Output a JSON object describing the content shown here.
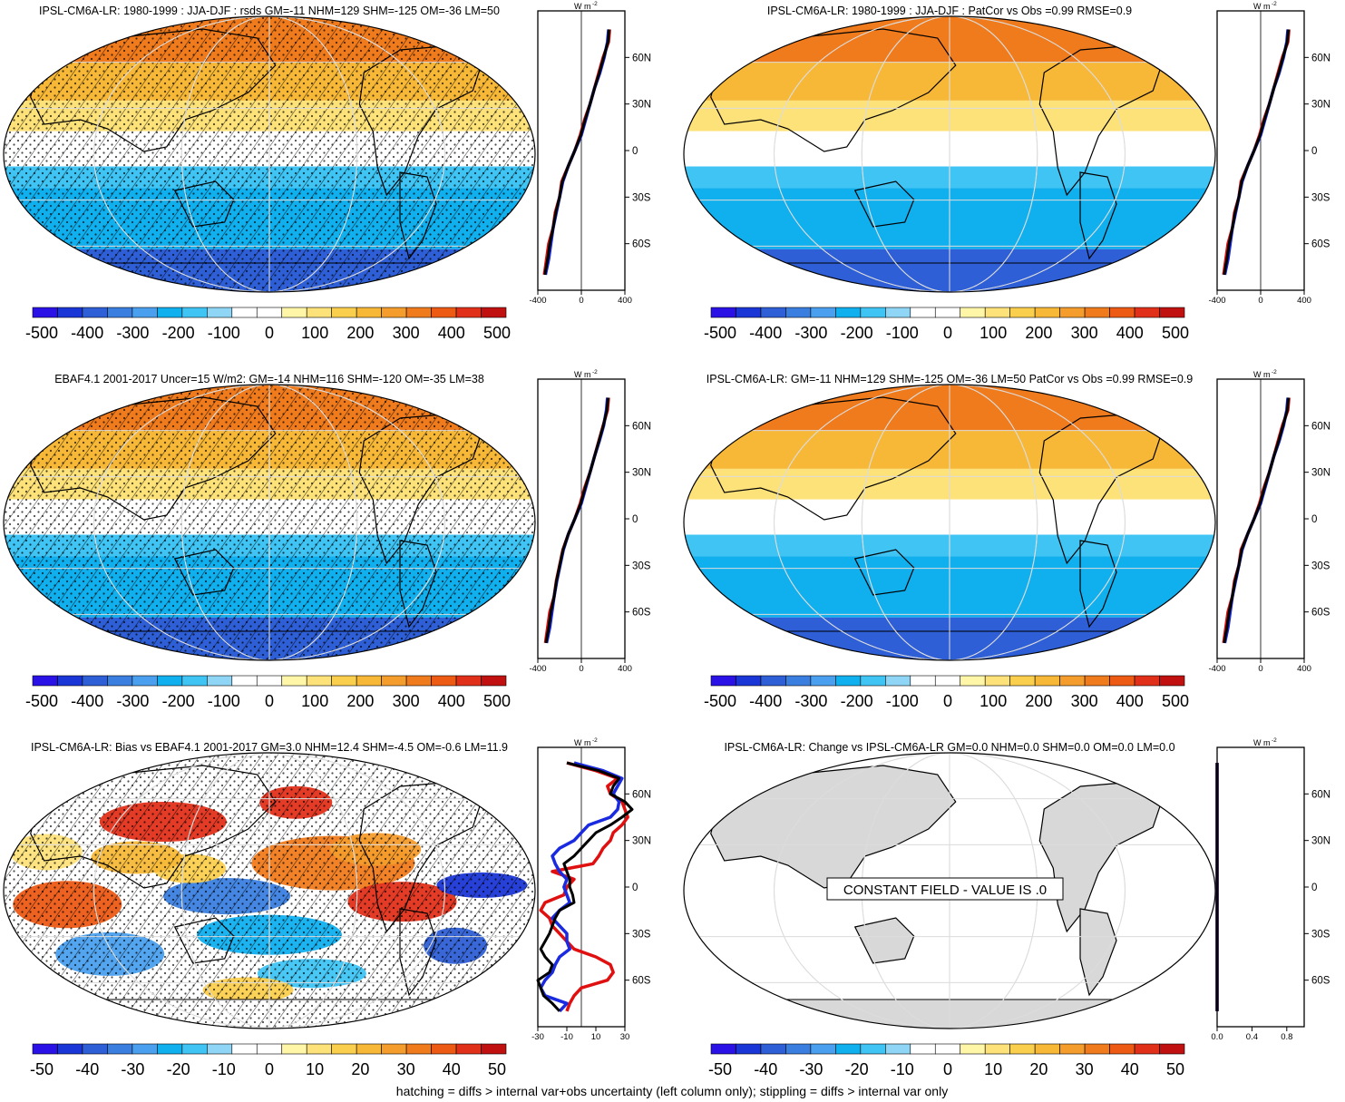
{
  "figure": {
    "footer": "hatching = diffs > internal var+obs uncertainty (left column only); stippling = diffs > internal var only",
    "units_label": "W m",
    "units_exp": "-2",
    "colors": {
      "scale": [
        "#2a12e6",
        "#1a36d6",
        "#2e5fd6",
        "#3a7fe0",
        "#4aa0ee",
        "#10b0ef",
        "#3fc4f4",
        "#8fd6f6",
        "#ffffff",
        "#ffffff",
        "#fff6a8",
        "#fde27a",
        "#fbcf4e",
        "#f7b838",
        "#f49c2c",
        "#f07b1c",
        "#ec5a14",
        "#e1301a",
        "#c01010"
      ],
      "model_line": "#e01010",
      "obs_line": "#1a2ae0",
      "ens_line": "#000000",
      "land_gray": "#d8d8d8",
      "graticule": "#dcdcdc"
    }
  },
  "chart_data": [
    {
      "type": "heatmap",
      "title": "IPSL-CM6A-LR: 1980-1999 : JJA-DJF : rsds GM=-11 NHM=129 SHM=-125 OM=-36 LM=50",
      "colorbar_labels": [
        "-500",
        "-400",
        "-300",
        "-200",
        "-100",
        "0",
        "100",
        "200",
        "300",
        "400",
        "500"
      ],
      "hatching": true,
      "stippling": true,
      "zonal_mean": {
        "lat_labels": [
          "60N",
          "30N",
          "0",
          "30S",
          "60S"
        ],
        "x_ticks": [
          "-400",
          "0",
          "400"
        ],
        "xlim": [
          -400,
          400
        ],
        "lats": [
          78,
          70,
          60,
          50,
          40,
          30,
          20,
          10,
          0,
          -10,
          -20,
          -30,
          -40,
          -50,
          -60,
          -70,
          -80
        ],
        "model": [
          260,
          250,
          200,
          160,
          120,
          80,
          30,
          -10,
          -60,
          -120,
          -180,
          -200,
          -240,
          -260,
          -300,
          -320,
          -340
        ],
        "obs": [
          250,
          240,
          210,
          170,
          120,
          80,
          40,
          0,
          -60,
          -120,
          -170,
          -200,
          -230,
          -260,
          -280,
          -300,
          -330
        ],
        "ens": [
          255,
          245,
          205,
          165,
          120,
          80,
          35,
          -5,
          -60,
          -120,
          -175,
          -200,
          -235,
          -260,
          -290,
          -310,
          -335
        ]
      }
    },
    {
      "type": "heatmap",
      "title": "IPSL-CM6A-LR: 1980-1999 : JJA-DJF : PatCor vs Obs =0.99 RMSE=0.9",
      "colorbar_labels": [
        "-500",
        "-400",
        "-300",
        "-200",
        "-100",
        "0",
        "100",
        "200",
        "300",
        "400",
        "500"
      ],
      "hatching": false,
      "stippling": false,
      "zonal_mean": {
        "lat_labels": [
          "60N",
          "30N",
          "0",
          "30S",
          "60S"
        ],
        "x_ticks": [
          "-400",
          "0",
          "400"
        ],
        "xlim": [
          -400,
          400
        ],
        "lats": [
          78,
          70,
          60,
          50,
          40,
          30,
          20,
          10,
          0,
          -10,
          -20,
          -30,
          -40,
          -50,
          -60,
          -70,
          -80
        ],
        "model": [
          260,
          250,
          200,
          160,
          120,
          80,
          30,
          -10,
          -60,
          -120,
          -180,
          -200,
          -240,
          -260,
          -300,
          -320,
          -340
        ],
        "obs": [
          250,
          240,
          210,
          170,
          120,
          80,
          40,
          0,
          -60,
          -120,
          -170,
          -200,
          -230,
          -260,
          -280,
          -300,
          -330
        ],
        "ens": [
          255,
          245,
          205,
          165,
          120,
          80,
          35,
          -5,
          -60,
          -120,
          -175,
          -200,
          -235,
          -260,
          -290,
          -310,
          -335
        ]
      }
    },
    {
      "type": "heatmap",
      "title": "EBAF4.1 2001-2017 Uncer=15 W/m2: GM=-14 NHM=116 SHM=-120 OM=-35 LM=38",
      "colorbar_labels": [
        "-500",
        "-400",
        "-300",
        "-200",
        "-100",
        "0",
        "100",
        "200",
        "300",
        "400",
        "500"
      ],
      "hatching": true,
      "stippling": true,
      "zonal_mean": {
        "lat_labels": [
          "60N",
          "30N",
          "0",
          "30S",
          "60S"
        ],
        "x_ticks": [
          "-400",
          "0",
          "400"
        ],
        "xlim": [
          -400,
          400
        ],
        "lats": [
          78,
          70,
          60,
          50,
          40,
          30,
          20,
          10,
          0,
          -10,
          -20,
          -30,
          -40,
          -50,
          -60,
          -70,
          -80
        ],
        "model": [
          250,
          240,
          200,
          160,
          120,
          80,
          30,
          -10,
          -60,
          -120,
          -170,
          -200,
          -230,
          -250,
          -290,
          -310,
          -330
        ],
        "obs": [
          240,
          230,
          205,
          165,
          120,
          80,
          40,
          0,
          -60,
          -120,
          -165,
          -195,
          -225,
          -250,
          -270,
          -290,
          -320
        ],
        "ens": [
          245,
          235,
          202,
          162,
          120,
          80,
          35,
          -5,
          -60,
          -120,
          -168,
          -198,
          -228,
          -250,
          -280,
          -300,
          -325
        ]
      }
    },
    {
      "type": "heatmap",
      "title": "IPSL-CM6A-LR: GM=-11 NHM=129 SHM=-125 OM=-36 LM=50 PatCor vs Obs =0.99 RMSE=0.9",
      "colorbar_labels": [
        "-500",
        "-400",
        "-300",
        "-200",
        "-100",
        "0",
        "100",
        "200",
        "300",
        "400",
        "500"
      ],
      "hatching": false,
      "stippling": false,
      "zonal_mean": {
        "lat_labels": [
          "60N",
          "30N",
          "0",
          "30S",
          "60S"
        ],
        "x_ticks": [
          "-400",
          "0",
          "400"
        ],
        "xlim": [
          -400,
          400
        ],
        "lats": [
          78,
          70,
          60,
          50,
          40,
          30,
          20,
          10,
          0,
          -10,
          -20,
          -30,
          -40,
          -50,
          -60,
          -70,
          -80
        ],
        "model": [
          260,
          250,
          200,
          160,
          120,
          80,
          30,
          -10,
          -60,
          -120,
          -180,
          -200,
          -240,
          -260,
          -300,
          -320,
          -340
        ],
        "obs": [
          250,
          240,
          210,
          170,
          120,
          80,
          40,
          0,
          -60,
          -120,
          -170,
          -200,
          -230,
          -260,
          -280,
          -300,
          -330
        ],
        "ens": [
          255,
          245,
          205,
          165,
          120,
          80,
          35,
          -5,
          -60,
          -120,
          -175,
          -200,
          -235,
          -260,
          -290,
          -310,
          -335
        ]
      }
    },
    {
      "type": "heatmap",
      "title": "IPSL-CM6A-LR: Bias vs EBAF4.1 2001-2017 GM=3.0 NHM=12.4 SHM=-4.5 OM=-0.6 LM=11.9",
      "colorbar_labels": [
        "-50",
        "-40",
        "-30",
        "-20",
        "-10",
        "0",
        "10",
        "20",
        "30",
        "40",
        "50"
      ],
      "hatching": true,
      "stippling": true,
      "zonal_mean": {
        "lat_labels": [
          "60N",
          "30N",
          "0",
          "30S",
          "60S"
        ],
        "x_ticks": [
          "-30",
          "-10",
          "10",
          "30"
        ],
        "xlim": [
          -30,
          30
        ],
        "lats": [
          80,
          75,
          70,
          65,
          60,
          55,
          50,
          45,
          40,
          35,
          30,
          25,
          20,
          15,
          10,
          5,
          0,
          -5,
          -10,
          -15,
          -20,
          -25,
          -30,
          -35,
          -40,
          -45,
          -50,
          -55,
          -60,
          -65,
          -70,
          -75,
          -80
        ],
        "model": [
          -10,
          10,
          25,
          18,
          20,
          28,
          30,
          32,
          28,
          22,
          20,
          15,
          12,
          8,
          -20,
          -5,
          -10,
          -12,
          -25,
          -28,
          -22,
          -20,
          -15,
          -10,
          -5,
          10,
          20,
          22,
          18,
          0,
          -5,
          -8,
          -10
        ],
        "obs": [
          -5,
          15,
          28,
          25,
          22,
          26,
          25,
          20,
          5,
          0,
          -5,
          -15,
          -20,
          -18,
          -15,
          -10,
          -12,
          -10,
          -8,
          -15,
          -20,
          -15,
          -10,
          -10,
          -8,
          -15,
          -18,
          -20,
          -25,
          -28,
          -25,
          -10,
          -15
        ],
        "ens": [
          -10,
          12,
          26,
          22,
          20,
          30,
          35,
          28,
          20,
          10,
          5,
          0,
          -5,
          -12,
          -10,
          -8,
          -8,
          -6,
          -5,
          -15,
          -18,
          -20,
          -22,
          -25,
          -28,
          -25,
          -20,
          -22,
          -30,
          -28,
          -26,
          -20,
          -15
        ]
      }
    },
    {
      "type": "heatmap",
      "title": "IPSL-CM6A-LR: Change vs IPSL-CM6A-LR GM=0.0 NHM=0.0 SHM=0.0 OM=0.0 LM=0.0",
      "colorbar_labels": [
        "-50",
        "-40",
        "-30",
        "-20",
        "-10",
        "0",
        "10",
        "20",
        "30",
        "40",
        "50"
      ],
      "hatching": false,
      "stippling": false,
      "constant_field_text": "CONSTANT FIELD - VALUE IS .0",
      "zonal_mean": {
        "lat_labels": [
          "60N",
          "30N",
          "0",
          "30S",
          "60S"
        ],
        "x_ticks": [
          "0.0",
          "0.4",
          "0.8"
        ],
        "xlim": [
          0,
          1
        ],
        "lats": [
          80,
          -80
        ],
        "model": [
          0,
          0
        ],
        "obs": [
          0,
          0
        ],
        "ens": [
          0,
          0
        ]
      }
    }
  ]
}
